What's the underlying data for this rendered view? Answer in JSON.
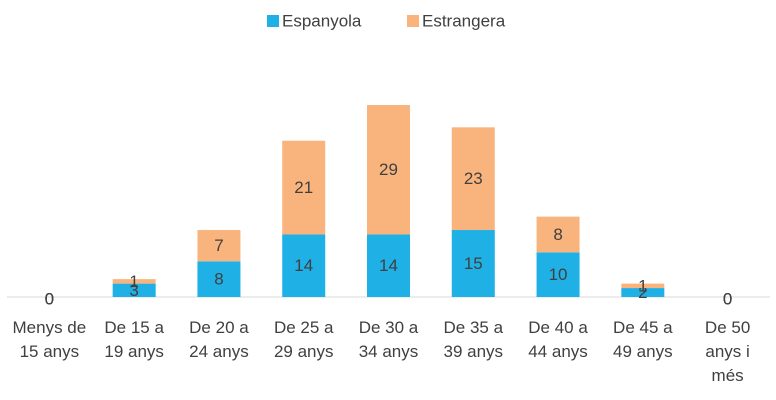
{
  "chart_data": {
    "type": "stacked_bar",
    "categories": [
      "Menys de 15 anys",
      "De 15 a 19 anys",
      "De 20 a 24 anys",
      "De 25 a 29 anys",
      "De 30 a 34 anys",
      "De 35 a 39 anys",
      "De 40 a 44 anys",
      "De 45 a 49 anys",
      "De 50 anys i més"
    ],
    "series": [
      {
        "name": "Espanyola",
        "color": "#1fb0e6",
        "values": [
          0,
          3,
          8,
          14,
          14,
          15,
          10,
          2,
          0
        ]
      },
      {
        "name": "Estrangera",
        "color": "#f9b47d",
        "values": [
          0,
          1,
          7,
          21,
          29,
          23,
          8,
          1,
          0
        ]
      }
    ],
    "legend": "top"
  }
}
